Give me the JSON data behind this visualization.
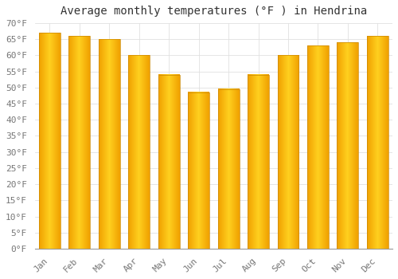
{
  "title": "Average monthly temperatures (°F ) in Hendrina",
  "months": [
    "Jan",
    "Feb",
    "Mar",
    "Apr",
    "May",
    "Jun",
    "Jul",
    "Aug",
    "Sep",
    "Oct",
    "Nov",
    "Dec"
  ],
  "values": [
    67,
    66,
    65,
    60,
    54,
    48.5,
    49.5,
    54,
    60,
    63,
    64,
    66
  ],
  "bar_color_center": "#FFD040",
  "bar_color_edge": "#F0A000",
  "background_color": "#FFFFFF",
  "grid_color": "#E0E0E0",
  "ylim": [
    0,
    70
  ],
  "ytick_step": 5,
  "title_fontsize": 10,
  "tick_fontsize": 8,
  "ytick_labels": [
    "0°F",
    "5°F",
    "10°F",
    "15°F",
    "20°F",
    "25°F",
    "30°F",
    "35°F",
    "40°F",
    "45°F",
    "50°F",
    "55°F",
    "60°F",
    "65°F",
    "70°F"
  ]
}
